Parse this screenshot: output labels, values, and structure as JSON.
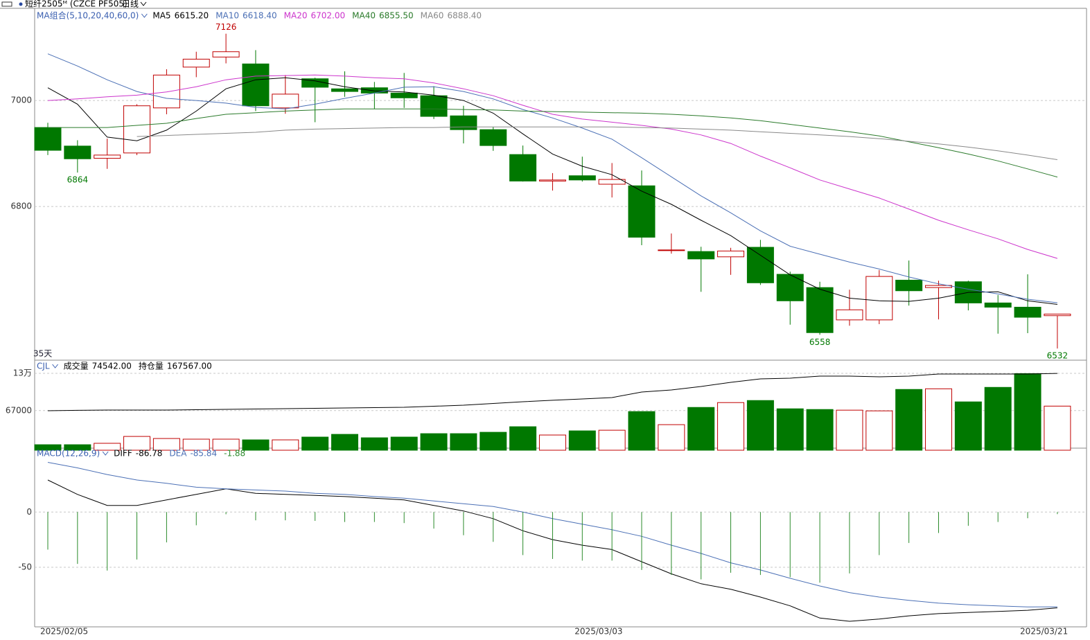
{
  "header": {
    "symbol": "短纤2505ᴹ (CZCE PF505)",
    "period": "日线"
  },
  "chart_data": [
    {
      "type": "candlestick",
      "indicator": "MA组合(5,10,20,40,60,0)",
      "period_label": "35天",
      "up_color": "#c00000",
      "down_color": "#007800",
      "ylim": [
        6510,
        7170
      ],
      "yticks": [
        6800,
        7000
      ],
      "grid": true,
      "open": [
        6949,
        6914,
        6891,
        6901,
        6986,
        7063,
        7082,
        7069,
        6986,
        7041,
        7022,
        7024,
        7014,
        7009,
        6971,
        6945,
        6898,
        6848,
        6858,
        6842,
        6839,
        6718,
        6715,
        6705,
        6723,
        6672,
        6647,
        6586,
        6586,
        6661,
        6647,
        6658,
        6618,
        6610,
        6594
      ],
      "high": [
        6958,
        6925,
        6928,
        6993,
        7059,
        7092,
        7126,
        7095,
        7048,
        7043,
        7055,
        7035,
        7052,
        7027,
        6990,
        6950,
        6915,
        6863,
        6894,
        6882,
        6868,
        6749,
        6724,
        6722,
        6737,
        6677,
        6658,
        6643,
        6680,
        6698,
        6660,
        6660,
        6633,
        6672,
        6597
      ],
      "low": [
        6897,
        6864,
        6871,
        6897,
        6974,
        7044,
        7070,
        6980,
        6975,
        6959,
        7007,
        6984,
        6986,
        6965,
        6919,
        6905,
        6847,
        6830,
        6847,
        6817,
        6727,
        6711,
        6639,
        6671,
        6652,
        6577,
        6558,
        6575,
        6578,
        6613,
        6587,
        6604,
        6560,
        6561,
        6532
      ],
      "close": [
        6906,
        6890,
        6897,
        6990,
        7048,
        7078,
        7092,
        6990,
        7012,
        7025,
        7017,
        7014,
        7005,
        6970,
        6945,
        6915,
        6848,
        6850,
        6850,
        6851,
        6742,
        6718,
        6701,
        6716,
        6656,
        6622,
        6562,
        6605,
        6668,
        6641,
        6651,
        6618,
        6610,
        6591,
        6597
      ],
      "annotations": [
        {
          "index": 6,
          "value": 7126
        },
        {
          "index": 1,
          "value": 6864
        },
        {
          "index": 26,
          "value": 6558
        },
        {
          "index": 34,
          "value": 6532
        }
      ],
      "series": [
        {
          "name": "MA5",
          "last_label": "6615.20",
          "color": "#000000",
          "values": [
            7024,
            6993,
            6931,
            6924,
            6944,
            6980,
            7022,
            7039,
            7043,
            7037,
            7026,
            7018,
            7016,
            7010,
            7000,
            6976,
            6937,
            6899,
            6876,
            6860,
            6829,
            6804,
            6774,
            6745,
            6708,
            6671,
            6644,
            6627,
            6622,
            6621,
            6627,
            6638,
            6639,
            6622,
            6615.2
          ]
        },
        {
          "name": "MA10",
          "last_label": "6618.40",
          "color": "#4a6fb5",
          "values": [
            7088,
            7065,
            7039,
            7017,
            7004,
            7000,
            6995,
            6987,
            6984,
            6993,
            7004,
            7014,
            7025,
            7026,
            7017,
            7003,
            6983,
            6967,
            6948,
            6927,
            6892,
            6856,
            6820,
            6788,
            6754,
            6725,
            6710,
            6695,
            6682,
            6667,
            6654,
            6644,
            6635,
            6625,
            6618.4
          ]
        },
        {
          "name": "MA20",
          "last_label": "6702.00",
          "color": "#cc33cc",
          "values": [
            7000,
            7003,
            7007,
            7010,
            7016,
            7026,
            7039,
            7046,
            7047,
            7048,
            7046,
            7043,
            7041,
            7033,
            7022,
            7009,
            6991,
            6974,
            6965,
            6959,
            6953,
            6946,
            6935,
            6919,
            6895,
            6873,
            6850,
            6833,
            6816,
            6795,
            6774,
            6756,
            6739,
            6719,
            6702
          ]
        },
        {
          "name": "MA40",
          "last_label": "6855.50",
          "color": "#2a7a2a",
          "values": [
            6949,
            6949,
            6949,
            6953,
            6957,
            6966,
            6974,
            6977,
            6980,
            6982,
            6984,
            6984,
            6984,
            6984,
            6983,
            6982,
            6980,
            6979,
            6978,
            6977,
            6976,
            6974,
            6971,
            6967,
            6962,
            6955,
            6948,
            6941,
            6933,
            6922,
            6911,
            6899,
            6886,
            6871,
            6855.5
          ]
        },
        {
          "name": "MA60",
          "last_label": "6888.40",
          "color": "#888888",
          "values": [
            null,
            null,
            null,
            6932,
            6934,
            6936,
            6938,
            6940,
            6944,
            6946,
            6947,
            6948,
            6949,
            6949,
            6950,
            6950,
            6950,
            6950,
            6950,
            6950,
            6949,
            6948,
            6946,
            6944,
            6941,
            6938,
            6935,
            6932,
            6928,
            6923,
            6918,
            6912,
            6905,
            6897,
            6888.4
          ]
        }
      ]
    },
    {
      "type": "volume",
      "indicator": "CJL",
      "ylim": [
        0,
        151000
      ],
      "yticks": [
        67000,
        {
          "value": 130000,
          "label": "13万"
        }
      ],
      "grid": true,
      "y2lim": [
        0,
        195000
      ],
      "series": [
        {
          "name": "成交量",
          "last_label": "74542.00",
          "values": [
            9300,
            9300,
            11700,
            23300,
            19800,
            18700,
            18700,
            17500,
            17500,
            22200,
            26800,
            21000,
            22200,
            28000,
            28000,
            30300,
            39700,
            25700,
            32700,
            33800,
            65300,
            43200,
            72300,
            80500,
            84000,
            70000,
            68800,
            67700,
            66500,
            102700,
            103800,
            81700,
            106200,
            129500,
            74542
          ]
        },
        {
          "name": "持仓量",
          "last_label": "167567.00",
          "color": "#000000",
          "axis": "y2",
          "values": [
            86200,
            87000,
            87700,
            87700,
            87700,
            88500,
            89200,
            90000,
            90700,
            91500,
            92200,
            93000,
            93700,
            96000,
            98300,
            102000,
            105800,
            109000,
            111900,
            114900,
            127000,
            131500,
            139100,
            148100,
            155700,
            157200,
            161700,
            161700,
            160200,
            161700,
            166300,
            166300,
            166300,
            166300,
            167567
          ]
        }
      ]
    },
    {
      "type": "macd",
      "indicator": "MACD(12,26,9)",
      "ylim": [
        -104,
        56
      ],
      "yticks": [
        -50,
        0
      ],
      "grid": true,
      "categories": [
        "2025/02/05",
        null,
        null,
        null,
        null,
        null,
        null,
        null,
        null,
        null,
        null,
        null,
        null,
        null,
        null,
        null,
        null,
        null,
        "2025/03/03",
        null,
        null,
        null,
        null,
        null,
        null,
        null,
        null,
        null,
        null,
        null,
        null,
        null,
        null,
        "2025/03/21",
        null
      ],
      "series": [
        {
          "name": "DIFF",
          "last_label": "-86.78",
          "color": "#000000",
          "values": [
            29,
            16,
            6,
            6,
            11,
            16,
            21,
            17,
            16,
            15,
            14,
            12.5,
            11,
            6,
            1,
            -6,
            -17,
            -25,
            -30,
            -34,
            -45,
            -56,
            -65,
            -70,
            -77,
            -85,
            -96,
            -99,
            -97,
            -94,
            -92,
            -91,
            -90,
            -89,
            -86.78
          ]
        },
        {
          "name": "DEA",
          "last_label": "-85.84",
          "color": "#4a6fb5",
          "values": [
            45,
            40,
            34,
            29,
            26,
            22.5,
            21,
            20,
            19,
            17,
            16,
            14,
            12.5,
            10,
            7.5,
            5,
            0,
            -6,
            -11,
            -16,
            -22,
            -30,
            -37.5,
            -46,
            -52.5,
            -60,
            -67,
            -73,
            -77,
            -80,
            -82.5,
            -84,
            -85,
            -86,
            -85.84
          ]
        },
        {
          "last_label": "-1.88",
          "color": "#2a8a2a",
          "values": [
            -34,
            -47,
            -53,
            -43,
            -27.5,
            -12,
            -2,
            -7.5,
            -7.5,
            -8,
            -9,
            -9,
            -10,
            -15,
            -21,
            -27,
            -39,
            -42.5,
            -44,
            -44,
            -52.5,
            -57,
            -61,
            -55,
            -57,
            -59,
            -64,
            -55.6,
            -39,
            -28,
            -19,
            -12.5,
            -9,
            -5.6,
            -1.88
          ]
        }
      ]
    }
  ]
}
